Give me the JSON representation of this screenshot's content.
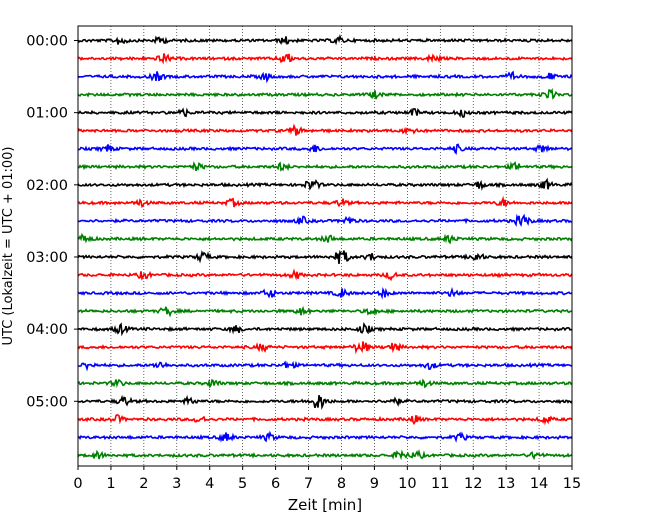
{
  "chart_data": {
    "type": "line",
    "title": "",
    "xlabel": "Zeit  [min]",
    "ylabel": "UTC (Lokalzeit = UTC + 01:00)",
    "xlim": [
      0,
      15
    ],
    "x_ticks": [
      0,
      1,
      2,
      3,
      4,
      5,
      6,
      7,
      8,
      9,
      10,
      11,
      12,
      13,
      14,
      15
    ],
    "x_tick_labels": [
      "0",
      "1",
      "2",
      "3",
      "4",
      "5",
      "6",
      "7",
      "8",
      "9",
      "10",
      "11",
      "12",
      "13",
      "14",
      "15"
    ],
    "y_tick_labels": [
      "00:00",
      "01:00",
      "02:00",
      "03:00",
      "04:00",
      "05:00"
    ],
    "trace_minutes": 15,
    "trace_count": 24,
    "trace_colors": [
      "#000000",
      "#ff0000",
      "#0000ff",
      "#008000"
    ],
    "grid": "vertical dotted lines at each minute",
    "legend": "none",
    "series": [
      {
        "start": "00:00",
        "events": [
          [
            1.3,
            0.5
          ],
          [
            2.5,
            0.4
          ],
          [
            6.3,
            0.4
          ],
          [
            7.9,
            0.4
          ]
        ]
      },
      {
        "start": "00:15",
        "events": [
          [
            2.6,
            0.5
          ],
          [
            6.3,
            0.6
          ],
          [
            10.8,
            0.4
          ]
        ]
      },
      {
        "start": "00:30",
        "events": [
          [
            2.4,
            0.5
          ],
          [
            5.7,
            0.4
          ],
          [
            13.2,
            0.4
          ],
          [
            14.3,
            0.4
          ]
        ]
      },
      {
        "start": "00:45",
        "events": [
          [
            9.0,
            0.4
          ],
          [
            14.3,
            0.5
          ]
        ]
      },
      {
        "start": "01:00",
        "events": [
          [
            3.2,
            0.4
          ],
          [
            10.2,
            0.4
          ],
          [
            11.7,
            0.4
          ]
        ]
      },
      {
        "start": "01:15",
        "events": [
          [
            6.6,
            0.5
          ],
          [
            10.1,
            0.5
          ]
        ]
      },
      {
        "start": "01:30",
        "events": [
          [
            0.9,
            0.4
          ],
          [
            7.2,
            0.4
          ],
          [
            11.5,
            0.4
          ],
          [
            14.1,
            0.4
          ]
        ]
      },
      {
        "start": "01:45",
        "events": [
          [
            3.6,
            0.4
          ],
          [
            6.2,
            0.4
          ],
          [
            13.3,
            0.4
          ]
        ]
      },
      {
        "start": "02:00",
        "events": [
          [
            7.1,
            0.6
          ],
          [
            12.2,
            0.4
          ],
          [
            14.2,
            0.5
          ]
        ]
      },
      {
        "start": "02:15",
        "events": [
          [
            1.9,
            0.4
          ],
          [
            4.7,
            0.4
          ],
          [
            8.0,
            0.4
          ],
          [
            12.9,
            0.4
          ]
        ]
      },
      {
        "start": "02:30",
        "events": [
          [
            6.8,
            0.4
          ],
          [
            8.2,
            0.4
          ],
          [
            13.5,
            0.7
          ]
        ]
      },
      {
        "start": "02:45",
        "events": [
          [
            0.2,
            0.5
          ],
          [
            7.6,
            0.4
          ],
          [
            11.3,
            0.4
          ]
        ]
      },
      {
        "start": "03:00",
        "events": [
          [
            3.8,
            0.5
          ],
          [
            8.0,
            0.8
          ],
          [
            8.9,
            0.4
          ],
          [
            12.1,
            0.5
          ]
        ]
      },
      {
        "start": "03:15",
        "events": [
          [
            2.0,
            0.4
          ],
          [
            6.6,
            0.4
          ],
          [
            9.5,
            0.4
          ]
        ]
      },
      {
        "start": "03:30",
        "events": [
          [
            5.8,
            0.5
          ],
          [
            8.0,
            0.5
          ],
          [
            9.3,
            0.4
          ],
          [
            11.4,
            0.4
          ]
        ]
      },
      {
        "start": "03:45",
        "events": [
          [
            2.7,
            0.5
          ],
          [
            6.8,
            0.4
          ],
          [
            8.9,
            0.4
          ]
        ]
      },
      {
        "start": "04:00",
        "events": [
          [
            1.3,
            0.5
          ],
          [
            4.8,
            0.4
          ],
          [
            8.7,
            0.5
          ]
        ]
      },
      {
        "start": "04:15",
        "events": [
          [
            5.6,
            0.4
          ],
          [
            8.6,
            0.7
          ],
          [
            9.6,
            0.5
          ]
        ]
      },
      {
        "start": "04:30",
        "events": [
          [
            0.3,
            0.4
          ],
          [
            2.5,
            0.4
          ],
          [
            6.4,
            0.4
          ],
          [
            10.7,
            0.4
          ]
        ]
      },
      {
        "start": "04:45",
        "events": [
          [
            1.2,
            0.4
          ],
          [
            4.1,
            0.4
          ],
          [
            10.5,
            0.4
          ]
        ]
      },
      {
        "start": "05:00",
        "events": [
          [
            1.4,
            0.5
          ],
          [
            3.4,
            0.4
          ],
          [
            7.3,
            0.9
          ],
          [
            9.6,
            0.4
          ]
        ]
      },
      {
        "start": "05:15",
        "events": [
          [
            1.2,
            0.4
          ],
          [
            3.7,
            0.4
          ],
          [
            10.2,
            0.4
          ],
          [
            14.2,
            0.4
          ]
        ]
      },
      {
        "start": "05:30",
        "events": [
          [
            4.5,
            0.5
          ],
          [
            5.8,
            0.4
          ],
          [
            11.6,
            0.4
          ]
        ]
      },
      {
        "start": "05:45",
        "events": [
          [
            0.6,
            0.4
          ],
          [
            9.8,
            0.5
          ],
          [
            10.3,
            0.4
          ],
          [
            13.9,
            0.4
          ]
        ]
      }
    ]
  }
}
